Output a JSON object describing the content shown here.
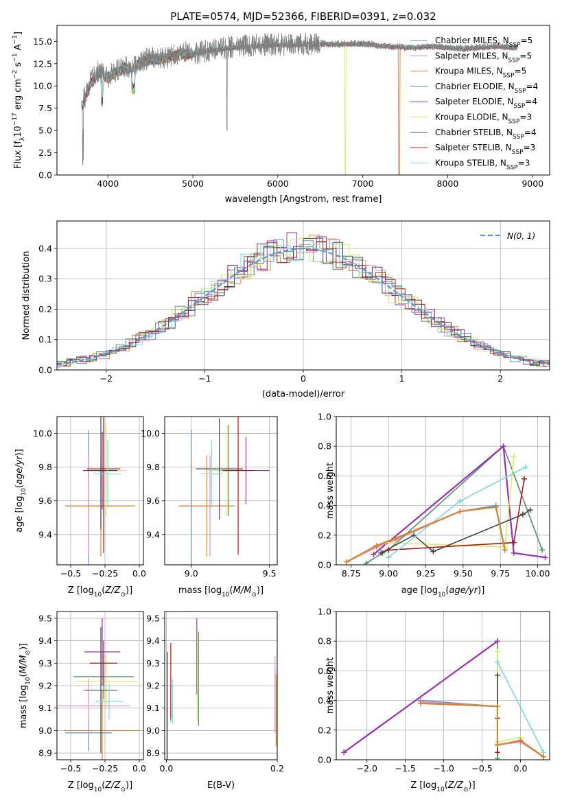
{
  "figure_title": "PLATE=0574, MJD=52366, FIBERID=0391, z=0.032",
  "legend_labels": [
    "Chabrier MILES, N$_{SSP}$=5",
    "Salpeter MILES, N$_{SSP}$=5",
    "Kroupa MILES, N$_{SSP}$=5",
    "Chabrier ELODIE, N$_{SSP}$=4",
    "Salpeter ELODIE, N$_{SSP}$=4",
    "Kroupa ELODIE, N$_{SSP}$=3",
    "Chabrier STELIB, N$_{SSP}$=4",
    "Salpeter STELIB, N$_{SSP}$=3",
    "Kroupa STELIB, N$_{SSP}$=3"
  ],
  "legend_display": [
    {
      "name": "Chabrier MILES, N",
      "sub": "SSP",
      "tail": "=5",
      "color": "#5b8fd6"
    },
    {
      "name": "Salpeter MILES, N",
      "sub": "SSP",
      "tail": "=5",
      "color": "#ee88c0"
    },
    {
      "name": "Kroupa MILES, N",
      "sub": "SSP",
      "tail": "=5",
      "color": "#d8822e"
    },
    {
      "name": "Chabrier ELODIE, N",
      "sub": "SSP",
      "tail": "=4",
      "color": "#4f8f60"
    },
    {
      "name": "Salpeter ELODIE, N",
      "sub": "SSP",
      "tail": "=4",
      "color": "#9a2fb8"
    },
    {
      "name": "Kroupa ELODIE, N",
      "sub": "SSP",
      "tail": "=3",
      "color": "#d7ec62"
    },
    {
      "name": "Chabrier STELIB, N",
      "sub": "SSP",
      "tail": "=4",
      "color": "#444444"
    },
    {
      "name": "Salpeter STELIB, N",
      "sub": "SSP",
      "tail": "=3",
      "color": "#b01818"
    },
    {
      "name": "Kroupa STELIB, N",
      "sub": "SSP",
      "tail": "=3",
      "color": "#7fd8dc"
    }
  ],
  "chart_data": [
    {
      "type": "line",
      "title": "PLATE=0574, MJD=52366, FIBERID=0391, z=0.032",
      "xlabel": "wavelength [Angstrom, rest frame]",
      "ylabel": "Flux [f_λ 10^-17 erg cm^-2 s^-1 A^-1]",
      "ylabel_display": {
        "pre": "Flux [f",
        "sub": "λ",
        "mid": "10",
        "sup1": "−17",
        "mid2": " erg cm",
        "sup2": "−2",
        "mid3": " s",
        "sup3": "−1",
        "mid4": " A",
        "sup4": "−1",
        "post": "]"
      },
      "xlim": [
        3400,
        9200
      ],
      "ylim": [
        0,
        16.8
      ],
      "xticks": [
        4000,
        5000,
        6000,
        7000,
        8000,
        9000
      ],
      "yticks": [
        0.0,
        2.5,
        5.0,
        7.5,
        10.0,
        12.5,
        15.0
      ],
      "ytick_labels": [
        "0.0",
        "2.5",
        "5.0",
        "7.5",
        "10.0",
        "12.5",
        "15.0"
      ],
      "data_series": {
        "name": "data",
        "color": "#808080",
        "x": [
          3700,
          3800,
          3900,
          4000,
          4100,
          4200,
          4300,
          4400,
          4500,
          4600,
          4700,
          4800,
          4900,
          5000,
          5200,
          5400,
          5600,
          5800,
          6000,
          6200,
          6400,
          6600,
          6800,
          7000,
          7200,
          7400,
          7600,
          7800,
          8000,
          8200,
          8400,
          8600,
          8800
        ],
        "y": [
          8.0,
          10.5,
          11.8,
          11.0,
          11.6,
          12.2,
          12.0,
          12.8,
          13.2,
          13.0,
          13.2,
          13.5,
          13.8,
          13.6,
          14.0,
          14.3,
          14.5,
          14.6,
          14.7,
          14.6,
          14.8,
          14.7,
          14.7,
          14.8,
          14.5,
          14.4,
          14.3,
          14.5,
          14.3,
          14.2,
          14.4,
          14.5,
          14.3
        ]
      },
      "model_series": {
        "x": [
          3700,
          3800,
          3900,
          4000,
          4100,
          4200,
          4300,
          4400,
          4500,
          4600,
          4700,
          4800,
          4900,
          5000,
          5200,
          5400,
          5600,
          5800,
          6000,
          6200,
          6400,
          6600,
          6800,
          7000,
          7200,
          7400,
          7600,
          7800,
          8000,
          8200,
          8400,
          8600,
          8800
        ],
        "y": [
          7.8,
          10.4,
          11.5,
          10.9,
          11.5,
          12.0,
          11.9,
          12.7,
          13.0,
          13.0,
          13.2,
          13.4,
          13.6,
          13.6,
          14.0,
          14.2,
          14.4,
          14.5,
          14.6,
          14.6,
          14.7,
          14.7,
          14.7,
          14.7,
          14.5,
          14.4,
          14.3,
          14.4,
          14.3,
          14.2,
          14.3,
          14.4,
          14.3
        ],
        "colors": [
          "#5b8fd6",
          "#ee88c0",
          "#d8822e",
          "#4f8f60",
          "#9a2fb8",
          "#d7ec62",
          "#444444",
          "#b01818",
          "#7fd8dc"
        ]
      },
      "legend_position": "right"
    },
    {
      "type": "histogram",
      "xlabel": "(data-model)/error",
      "ylabel": "Normed distribution",
      "xlim": [
        -2.5,
        2.5
      ],
      "ylim": [
        0,
        0.49
      ],
      "xticks": [
        -2,
        -1,
        0,
        1,
        2
      ],
      "xtick_labels": [
        "−2",
        "−1",
        "0",
        "1",
        "2"
      ],
      "yticks": [
        0.0,
        0.1,
        0.2,
        0.3,
        0.4
      ],
      "ytick_labels": [
        "0.0",
        "0.1",
        "0.2",
        "0.3",
        "0.4"
      ],
      "bin_width": 0.1,
      "gaussian_label": "N(0, 1)",
      "gaussian_color": "#5b8fd6",
      "legend_position": "upper right"
    },
    {
      "type": "scatter",
      "panel": "age vs Z",
      "xlabel": "Z [log10(Z/Z⊙)]",
      "ylabel": "age [log10(age/yr)]",
      "xlim": [
        -0.6,
        0.03
      ],
      "ylim": [
        9.22,
        10.1
      ],
      "xticks": [
        -0.5,
        -0.25,
        0.0
      ],
      "xtick_labels": [
        "−0.5",
        "−0.25",
        "0.0"
      ],
      "yticks": [
        9.4,
        9.6,
        9.8,
        10.0
      ],
      "ytick_labels": [
        "9.4",
        "9.6",
        "9.8",
        "10.0"
      ],
      "crosses": [
        {
          "x": -0.37,
          "y": 9.57,
          "xerr": 0.17,
          "yerr": 0.45,
          "color": "#5b8fd6"
        },
        {
          "x": -0.37,
          "y": 9.57,
          "xerr": 0.12,
          "yerr": 0.3,
          "color": "#ee88c0"
        },
        {
          "x": -0.28,
          "y": 9.57,
          "xerr": 0.25,
          "yerr": 0.3,
          "color": "#d8822e"
        },
        {
          "x": -0.26,
          "y": 9.78,
          "xerr": 0.12,
          "yerr": 0.27,
          "color": "#4f8f60"
        },
        {
          "x": -0.27,
          "y": 9.78,
          "xerr": 0.14,
          "yerr": 0.23,
          "color": "#9a2fb8"
        },
        {
          "x": -0.24,
          "y": 9.78,
          "xerr": 0.14,
          "yerr": 0.27,
          "color": "#d7ec62"
        },
        {
          "x": -0.28,
          "y": 9.78,
          "xerr": 0.12,
          "yerr": 0.35,
          "color": "#444444"
        },
        {
          "x": -0.26,
          "y": 9.79,
          "xerr": 0.12,
          "yerr": 0.5,
          "color": "#b01818"
        },
        {
          "x": -0.23,
          "y": 9.76,
          "xerr": 0.1,
          "yerr": 0.2,
          "color": "#7fd8dc"
        }
      ]
    },
    {
      "type": "scatter",
      "panel": "age vs mass",
      "xlabel": "mass [log10(M/M⊙)]",
      "xlim": [
        8.83,
        9.55
      ],
      "ylim": [
        9.22,
        10.1
      ],
      "xticks": [
        9.0,
        9.5
      ],
      "xtick_labels": [
        "9.0",
        "9.5"
      ],
      "yticks": [
        9.4,
        9.6,
        9.8,
        10.0
      ],
      "ytick_labels": [
        "9.4",
        "9.6",
        "9.8",
        "10.0"
      ],
      "crosses": [
        {
          "x": 9.0,
          "y": 9.57,
          "xerr": 0.08,
          "yerr": 0.45,
          "color": "#5b8fd6"
        },
        {
          "x": 9.12,
          "y": 9.57,
          "xerr": 0.12,
          "yerr": 0.3,
          "color": "#ee88c0"
        },
        {
          "x": 9.1,
          "y": 9.57,
          "xerr": 0.18,
          "yerr": 0.3,
          "color": "#d8822e"
        },
        {
          "x": 9.24,
          "y": 9.78,
          "xerr": 0.1,
          "yerr": 0.27,
          "color": "#4f8f60"
        },
        {
          "x": 9.35,
          "y": 9.78,
          "xerr": 0.15,
          "yerr": 0.2,
          "color": "#9a2fb8"
        },
        {
          "x": 9.23,
          "y": 9.78,
          "xerr": 0.12,
          "yerr": 0.27,
          "color": "#d7ec62"
        },
        {
          "x": 9.18,
          "y": 9.79,
          "xerr": 0.15,
          "yerr": 0.3,
          "color": "#444444"
        },
        {
          "x": 9.3,
          "y": 9.78,
          "xerr": 0.1,
          "yerr": 0.5,
          "color": "#b01818"
        },
        {
          "x": 9.13,
          "y": 9.76,
          "xerr": 0.07,
          "yerr": 0.2,
          "color": "#7fd8dc"
        }
      ]
    },
    {
      "type": "line",
      "panel": "mass weight vs age",
      "xlabel": "age  [log10(age/yr)]",
      "ylabel": "mass weight",
      "xlim": [
        8.65,
        10.08
      ],
      "ylim": [
        0,
        1.0
      ],
      "xticks": [
        8.75,
        9.0,
        9.25,
        9.5,
        9.75,
        10.0
      ],
      "xtick_labels": [
        "8.75",
        "9.00",
        "9.25",
        "9.50",
        "9.75",
        "10.00"
      ],
      "yticks": [
        0.0,
        0.2,
        0.4,
        0.6,
        0.8,
        1.0
      ],
      "ytick_labels": [
        "0.0",
        "0.2",
        "0.4",
        "0.6",
        "0.8",
        "1.0"
      ],
      "series": [
        {
          "color": "#5b8fd6",
          "x": [
            8.72,
            8.92,
            9.05,
            9.48,
            9.72,
            9.78
          ],
          "y": [
            0.02,
            0.12,
            0.18,
            0.36,
            0.4,
            0.1
          ]
        },
        {
          "color": "#ee88c0",
          "x": [
            8.72,
            8.92,
            9.05,
            9.48,
            9.72,
            9.78
          ],
          "y": [
            0.02,
            0.12,
            0.17,
            0.36,
            0.39,
            0.1
          ]
        },
        {
          "color": "#4f8f60",
          "x": [
            8.85,
            8.96,
            9.0,
            9.77,
            10.03
          ],
          "y": [
            0.01,
            0.08,
            0.1,
            0.8,
            0.1
          ]
        },
        {
          "color": "#9a2fb8",
          "x": [
            8.9,
            9.77,
            9.84,
            10.05
          ],
          "y": [
            0.07,
            0.8,
            0.08,
            0.05
          ]
        },
        {
          "color": "#d7ec62",
          "x": [
            8.98,
            9.78,
            9.84
          ],
          "y": [
            0.15,
            0.12,
            0.73
          ]
        },
        {
          "color": "#444444",
          "x": [
            8.95,
            9.17,
            9.3,
            9.9,
            9.95
          ],
          "y": [
            0.08,
            0.2,
            0.09,
            0.34,
            0.37
          ]
        },
        {
          "color": "#b01818",
          "x": [
            9.0,
            9.84,
            9.91
          ],
          "y": [
            0.1,
            0.15,
            0.58
          ]
        },
        {
          "color": "#7fd8dc",
          "x": [
            9.0,
            9.48,
            9.92
          ],
          "y": [
            0.05,
            0.43,
            0.66
          ]
        },
        {
          "color": "#d8822e",
          "x": [
            8.72,
            8.92,
            9.05,
            9.48,
            9.72,
            9.78
          ],
          "y": [
            0.02,
            0.13,
            0.18,
            0.36,
            0.39,
            0.1
          ]
        }
      ]
    },
    {
      "type": "scatter",
      "panel": "mass vs Z",
      "xlabel": "Z [log10(Z/Z⊙)]",
      "ylabel": "mass [log10(M/M⊙)]",
      "xlim": [
        -0.6,
        0.03
      ],
      "ylim": [
        8.87,
        9.53
      ],
      "xticks": [
        -0.5,
        -0.25,
        0.0
      ],
      "xtick_labels": [
        "−0.5",
        "−0.25",
        "0.0"
      ],
      "yticks": [
        8.9,
        9.0,
        9.1,
        9.2,
        9.3,
        9.4,
        9.5
      ],
      "ytick_labels": [
        "8.9",
        "9.0",
        "9.1",
        "9.2",
        "9.3",
        "9.4",
        "9.5"
      ],
      "crosses": [
        {
          "x": -0.37,
          "y": 8.99,
          "xerr": 0.17,
          "yerr": 0.08,
          "color": "#5b8fd6"
        },
        {
          "x": -0.37,
          "y": 9.11,
          "xerr": 0.3,
          "yerr": 0.12,
          "color": "#ee88c0"
        },
        {
          "x": -0.27,
          "y": 9.0,
          "xerr": 0.28,
          "yerr": 0.18,
          "color": "#d8822e"
        },
        {
          "x": -0.26,
          "y": 9.24,
          "xerr": 0.22,
          "yerr": 0.1,
          "color": "#4f8f60"
        },
        {
          "x": -0.27,
          "y": 9.35,
          "xerr": 0.13,
          "yerr": 0.15,
          "color": "#9a2fb8"
        },
        {
          "x": -0.24,
          "y": 9.22,
          "xerr": 0.22,
          "yerr": 0.12,
          "color": "#d7ec62"
        },
        {
          "x": -0.28,
          "y": 9.18,
          "xerr": 0.12,
          "yerr": 0.28,
          "color": "#444444"
        },
        {
          "x": -0.26,
          "y": 9.3,
          "xerr": 0.1,
          "yerr": 0.1,
          "color": "#b01818"
        },
        {
          "x": -0.22,
          "y": 9.13,
          "xerr": 0.1,
          "yerr": 0.08,
          "color": "#7fd8dc"
        }
      ]
    },
    {
      "type": "scatter",
      "panel": "mass vs E(B-V)",
      "xlabel": "E(B-V)",
      "xlim": [
        -0.003,
        0.2
      ],
      "ylim": [
        8.87,
        9.53
      ],
      "xticks": [
        0.0,
        0.2
      ],
      "xtick_labels": [
        "0.0",
        "0.2"
      ],
      "yticks": [
        8.9,
        9.0,
        9.1,
        9.2,
        9.3,
        9.4,
        9.5
      ],
      "ytick_labels": [
        "8.9",
        "9.0",
        "9.1",
        "9.2",
        "9.3",
        "9.4",
        "9.5"
      ],
      "crosses": [
        {
          "x": 0.008,
          "y": 9.12,
          "xerr": 0,
          "yerr": 0.08,
          "color": "#5b8fd6"
        },
        {
          "x": 0.196,
          "y": 9.16,
          "xerr": 0,
          "yerr": 0.17,
          "color": "#ee88c0"
        },
        {
          "x": 0.198,
          "y": 9.09,
          "xerr": 0,
          "yerr": 0.16,
          "color": "#d8822e"
        },
        {
          "x": 0.058,
          "y": 9.23,
          "xerr": 0,
          "yerr": 0.21,
          "color": "#4f8f60"
        },
        {
          "x": 0.055,
          "y": 9.33,
          "xerr": 0,
          "yerr": 0.17,
          "color": "#9a2fb8"
        },
        {
          "x": 0.056,
          "y": 9.24,
          "xerr": 0,
          "yerr": 0.2,
          "color": "#d7ec62"
        },
        {
          "x": 0.002,
          "y": 9.1,
          "xerr": 0,
          "yerr": 0.25,
          "color": "#444444"
        },
        {
          "x": 0.008,
          "y": 9.22,
          "xerr": 0,
          "yerr": 0.17,
          "color": "#b01818"
        },
        {
          "x": 0.011,
          "y": 9.13,
          "xerr": 0,
          "yerr": 0.1,
          "color": "#7fd8dc"
        }
      ]
    },
    {
      "type": "line",
      "panel": "mass weight vs Z",
      "xlabel": "Z [log10(Z/Z⊙)]",
      "ylabel": "mass weight",
      "xlim": [
        -2.4,
        0.38
      ],
      "ylim": [
        0,
        1.0
      ],
      "xticks": [
        -2.0,
        -1.5,
        -1.0,
        -0.5,
        0.0
      ],
      "xtick_labels": [
        "−2.0",
        "−1.5",
        "−1.0",
        "−0.5",
        "0.0"
      ],
      "yticks": [
        0.0,
        0.2,
        0.4,
        0.6,
        0.8,
        1.0
      ],
      "ytick_labels": [
        "0.0",
        "0.2",
        "0.4",
        "0.6",
        "0.8",
        "1.0"
      ],
      "series": [
        {
          "color": "#5b8fd6",
          "x": [
            -1.3,
            -0.3,
            -0.3,
            0.0,
            0.3
          ],
          "y": [
            0.4,
            0.36,
            0.1,
            0.12,
            0.02
          ]
        },
        {
          "color": "#ee88c0",
          "x": [
            -1.3,
            -0.3,
            -0.3,
            0.0,
            0.3
          ],
          "y": [
            0.39,
            0.36,
            0.1,
            0.12,
            0.02
          ]
        },
        {
          "color": "#4f8f60",
          "x": [
            -0.3,
            -0.3,
            -0.3
          ],
          "y": [
            0.8,
            0.1,
            0.01
          ]
        },
        {
          "color": "#9a2fb8",
          "x": [
            -2.3,
            -0.3
          ],
          "y": [
            0.05,
            0.8
          ]
        },
        {
          "color": "#d7ec62",
          "x": [
            -0.3,
            -0.3,
            0.0
          ],
          "y": [
            0.73,
            0.12,
            0.15
          ]
        },
        {
          "color": "#444444",
          "x": [
            -0.3,
            -0.3,
            0.0
          ],
          "y": [
            0.57,
            0.1,
            0.13
          ]
        },
        {
          "color": "#b01818",
          "x": [
            -0.3,
            -0.3
          ],
          "y": [
            0.28,
            0.05
          ]
        },
        {
          "color": "#7fd8dc",
          "x": [
            -0.3,
            0.3
          ],
          "y": [
            0.66,
            0.05
          ]
        },
        {
          "color": "#d8822e",
          "x": [
            -1.3,
            -0.3,
            -0.3,
            0.0,
            0.3
          ],
          "y": [
            0.38,
            0.36,
            0.1,
            0.13,
            0.02
          ]
        }
      ]
    }
  ]
}
